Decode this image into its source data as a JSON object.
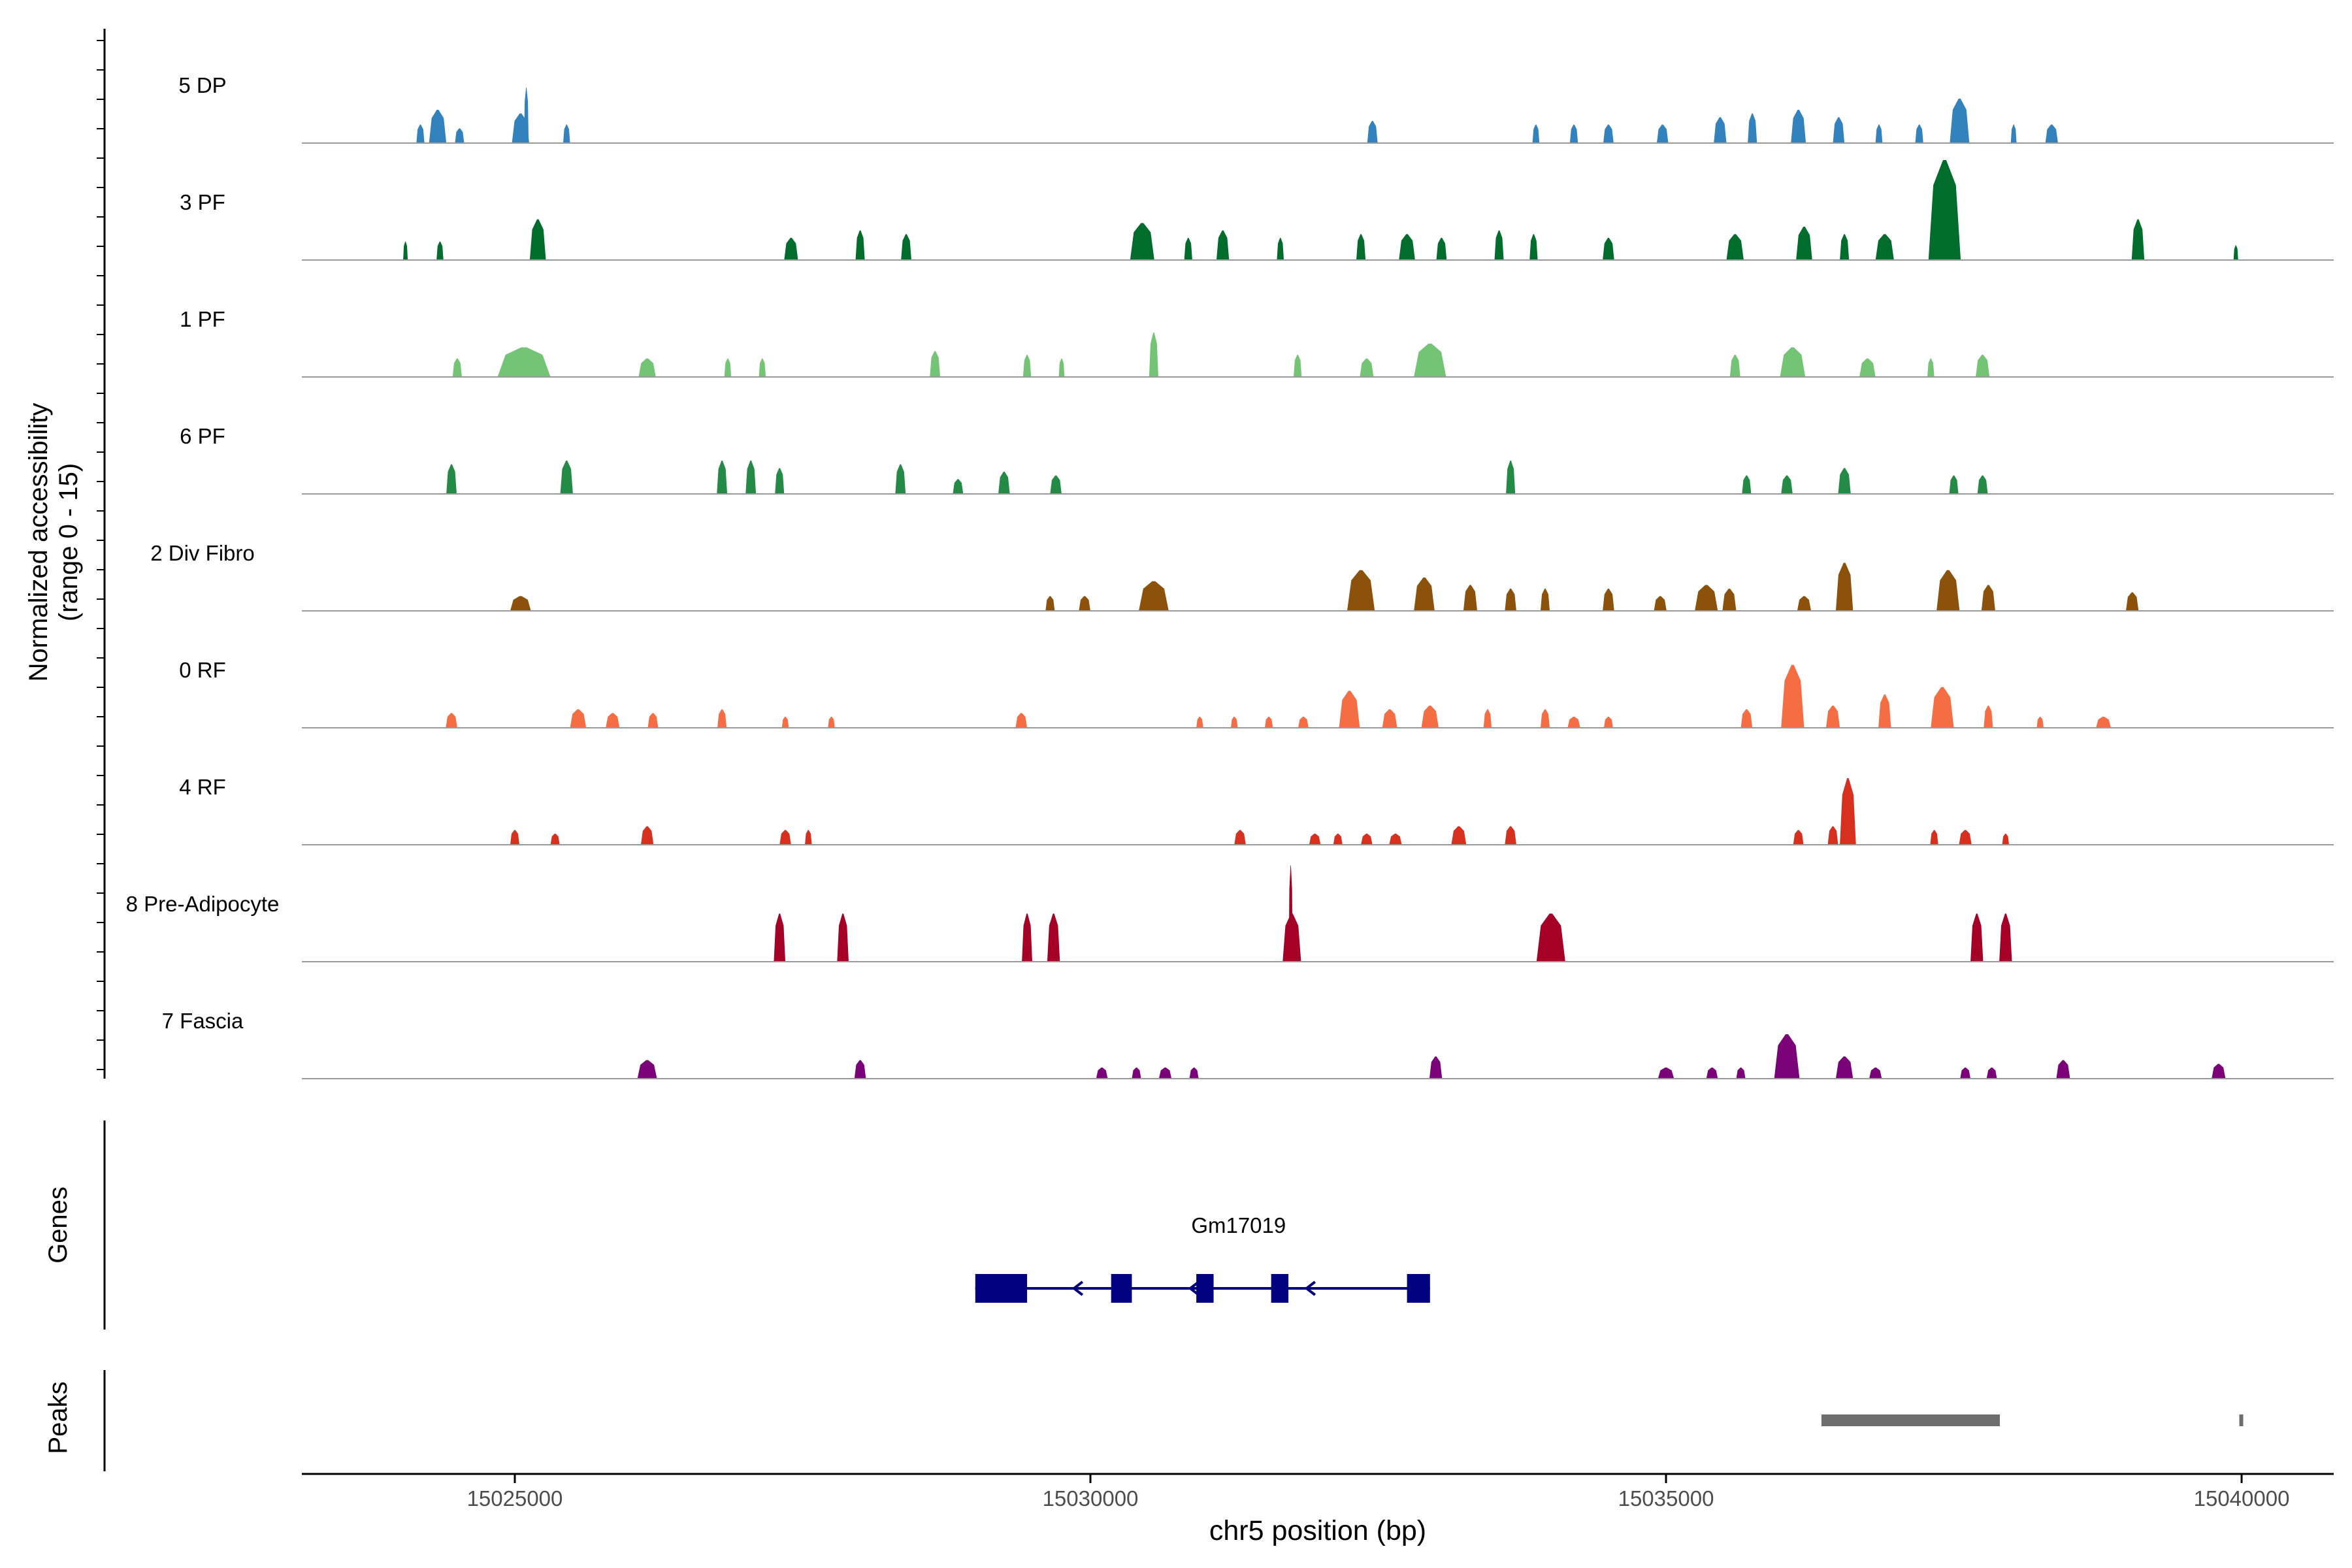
{
  "chart_data": {
    "type": "area",
    "title": "",
    "xlabel": "chr5 position (bp)",
    "ylabel": "Normalized accessibility",
    "ylabel_range": "(range 0 - 15)",
    "xlim": [
      15023150,
      15040800
    ],
    "xticks": [
      15025000,
      15030000,
      15035000,
      15040000
    ],
    "xtick_labels": [
      "15025000",
      "15030000",
      "15035000",
      "15040000"
    ],
    "ylim": [
      0,
      15
    ],
    "grid": false,
    "series": [
      {
        "name": "5 DP",
        "color": "#3182BD",
        "peaks": [
          [
            15024330,
            150,
            4.5
          ],
          [
            15024180,
            70,
            2.5
          ],
          [
            15024520,
            80,
            2.0
          ],
          [
            15025050,
            150,
            4.0
          ],
          [
            15025100,
            40,
            7.5
          ],
          [
            15025450,
            60,
            2.5
          ],
          [
            15032450,
            90,
            3.0
          ],
          [
            15033870,
            60,
            2.5
          ],
          [
            15034200,
            70,
            2.5
          ],
          [
            15034500,
            90,
            2.5
          ],
          [
            15034970,
            100,
            2.5
          ],
          [
            15035470,
            110,
            3.5
          ],
          [
            15035750,
            80,
            4.0
          ],
          [
            15036150,
            130,
            4.5
          ],
          [
            15036500,
            100,
            3.5
          ],
          [
            15036850,
            60,
            2.5
          ],
          [
            15037200,
            70,
            2.5
          ],
          [
            15037550,
            170,
            6.0
          ],
          [
            15038020,
            50,
            2.5
          ],
          [
            15038350,
            110,
            2.5
          ]
        ]
      },
      {
        "name": "3 PF",
        "color": "#006D2C",
        "peaks": [
          [
            15024050,
            40,
            2.5
          ],
          [
            15024350,
            60,
            2.5
          ],
          [
            15025200,
            140,
            5.5
          ],
          [
            15027400,
            120,
            3.0
          ],
          [
            15028000,
            80,
            4.0
          ],
          [
            15028400,
            90,
            3.5
          ],
          [
            15030450,
            210,
            5.0
          ],
          [
            15030850,
            70,
            3.0
          ],
          [
            15031150,
            110,
            4.0
          ],
          [
            15031650,
            60,
            3.0
          ],
          [
            15032350,
            80,
            3.5
          ],
          [
            15032750,
            140,
            3.5
          ],
          [
            15033050,
            90,
            3.0
          ],
          [
            15033550,
            80,
            4.0
          ],
          [
            15033850,
            70,
            3.5
          ],
          [
            15034500,
            100,
            3.0
          ],
          [
            15035600,
            150,
            3.5
          ],
          [
            15036200,
            140,
            4.5
          ],
          [
            15036550,
            80,
            3.5
          ],
          [
            15036900,
            160,
            3.5
          ],
          [
            15037420,
            280,
            13.5
          ],
          [
            15039100,
            110,
            5.5
          ],
          [
            15039950,
            40,
            2.0
          ]
        ]
      },
      {
        "name": "1 PF",
        "color": "#74C476",
        "peaks": [
          [
            15025080,
            460,
            4.0
          ],
          [
            15024500,
            80,
            2.5
          ],
          [
            15026150,
            150,
            2.5
          ],
          [
            15026850,
            60,
            2.5
          ],
          [
            15027150,
            60,
            2.5
          ],
          [
            15028650,
            90,
            3.5
          ],
          [
            15029450,
            70,
            3.0
          ],
          [
            15029750,
            50,
            2.5
          ],
          [
            15030550,
            80,
            6.0
          ],
          [
            15031800,
            70,
            3.0
          ],
          [
            15032400,
            120,
            2.5
          ],
          [
            15032950,
            280,
            4.5
          ],
          [
            15035600,
            90,
            3.0
          ],
          [
            15036100,
            220,
            4.0
          ],
          [
            15036750,
            140,
            2.5
          ],
          [
            15037300,
            60,
            2.5
          ],
          [
            15037750,
            120,
            3.0
          ]
        ]
      },
      {
        "name": "6 PF",
        "color": "#238B45",
        "peaks": [
          [
            15024450,
            90,
            4.0
          ],
          [
            15025450,
            110,
            4.5
          ],
          [
            15026800,
            90,
            4.5
          ],
          [
            15027050,
            90,
            4.5
          ],
          [
            15027300,
            80,
            3.5
          ],
          [
            15028350,
            90,
            4.0
          ],
          [
            15028850,
            90,
            2.0
          ],
          [
            15029250,
            100,
            3.0
          ],
          [
            15029700,
            100,
            2.5
          ],
          [
            15033650,
            80,
            4.5
          ],
          [
            15035700,
            80,
            2.5
          ],
          [
            15036050,
            100,
            2.5
          ],
          [
            15036550,
            110,
            3.5
          ],
          [
            15037500,
            80,
            2.5
          ],
          [
            15037750,
            90,
            2.5
          ]
        ]
      },
      {
        "name": "2 Div Fibro",
        "color": "#8C510A",
        "peaks": [
          [
            15025050,
            180,
            2.0
          ],
          [
            15029650,
            80,
            2.0
          ],
          [
            15029950,
            100,
            2.0
          ],
          [
            15030550,
            260,
            4.0
          ],
          [
            15032350,
            240,
            5.5
          ],
          [
            15032900,
            180,
            4.5
          ],
          [
            15033300,
            120,
            3.5
          ],
          [
            15033650,
            100,
            3.0
          ],
          [
            15033950,
            80,
            3.0
          ],
          [
            15034500,
            100,
            3.0
          ],
          [
            15034950,
            110,
            2.0
          ],
          [
            15035350,
            200,
            3.5
          ],
          [
            15035550,
            120,
            3.0
          ],
          [
            15036200,
            120,
            2.0
          ],
          [
            15036550,
            150,
            6.5
          ],
          [
            15037450,
            200,
            5.5
          ],
          [
            15037800,
            120,
            3.5
          ],
          [
            15039050,
            110,
            2.5
          ]
        ]
      },
      {
        "name": "0 RF",
        "color": "#F46D43",
        "peaks": [
          [
            15024450,
            100,
            2.0
          ],
          [
            15025550,
            140,
            2.5
          ],
          [
            15025850,
            120,
            2.0
          ],
          [
            15026200,
            90,
            2.0
          ],
          [
            15026800,
            80,
            2.5
          ],
          [
            15027350,
            60,
            1.5
          ],
          [
            15027750,
            60,
            1.5
          ],
          [
            15029400,
            100,
            2.0
          ],
          [
            15030950,
            60,
            1.5
          ],
          [
            15031250,
            60,
            1.5
          ],
          [
            15031550,
            70,
            1.5
          ],
          [
            15031850,
            90,
            1.5
          ],
          [
            15032250,
            180,
            5.0
          ],
          [
            15032600,
            130,
            2.5
          ],
          [
            15032950,
            150,
            3.0
          ],
          [
            15033450,
            70,
            2.5
          ],
          [
            15033950,
            80,
            2.5
          ],
          [
            15034200,
            110,
            1.5
          ],
          [
            15034500,
            80,
            1.5
          ],
          [
            15035700,
            100,
            2.5
          ],
          [
            15036100,
            200,
            8.5
          ],
          [
            15036450,
            120,
            3.0
          ],
          [
            15036900,
            110,
            4.5
          ],
          [
            15037400,
            200,
            5.5
          ],
          [
            15037800,
            80,
            3.0
          ],
          [
            15038250,
            60,
            1.5
          ],
          [
            15038800,
            130,
            1.5
          ]
        ]
      },
      {
        "name": "4 RF",
        "color": "#D7301F",
        "peaks": [
          [
            15025000,
            80,
            2.0
          ],
          [
            15025350,
            80,
            1.5
          ],
          [
            15026150,
            110,
            2.5
          ],
          [
            15027350,
            100,
            2.0
          ],
          [
            15027550,
            60,
            2.0
          ],
          [
            15031300,
            100,
            2.0
          ],
          [
            15031950,
            100,
            1.5
          ],
          [
            15032150,
            80,
            1.5
          ],
          [
            15032400,
            100,
            1.5
          ],
          [
            15032650,
            110,
            1.5
          ],
          [
            15033200,
            130,
            2.5
          ],
          [
            15033650,
            100,
            2.5
          ],
          [
            15036150,
            90,
            2.0
          ],
          [
            15036450,
            90,
            2.5
          ],
          [
            15036580,
            140,
            9.0
          ],
          [
            15037330,
            70,
            2.0
          ],
          [
            15037600,
            110,
            2.0
          ],
          [
            15037950,
            60,
            1.5
          ]
        ]
      },
      {
        "name": "8 Pre-Adipocyte",
        "color": "#A50026",
        "peaks": [
          [
            15027300,
            100,
            6.5
          ],
          [
            15027850,
            100,
            6.5
          ],
          [
            15029450,
            90,
            6.5
          ],
          [
            15029680,
            110,
            6.5
          ],
          [
            15031750,
            160,
            6.5
          ],
          [
            15031740,
            30,
            13.0
          ],
          [
            15034000,
            250,
            6.5
          ],
          [
            15037700,
            110,
            6.5
          ],
          [
            15037950,
            110,
            6.5
          ]
        ]
      },
      {
        "name": "7 Fascia",
        "color": "#7A0177",
        "peaks": [
          [
            15026150,
            170,
            2.5
          ],
          [
            15028000,
            100,
            2.5
          ],
          [
            15030100,
            100,
            1.5
          ],
          [
            15030400,
            80,
            1.5
          ],
          [
            15030650,
            110,
            1.5
          ],
          [
            15030900,
            80,
            1.5
          ],
          [
            15033000,
            110,
            3.0
          ],
          [
            15035000,
            140,
            1.5
          ],
          [
            15035400,
            100,
            1.5
          ],
          [
            15035650,
            80,
            1.5
          ],
          [
            15036050,
            220,
            6.0
          ],
          [
            15036550,
            150,
            3.0
          ],
          [
            15036820,
            110,
            1.5
          ],
          [
            15037600,
            90,
            1.5
          ],
          [
            15037830,
            90,
            1.5
          ],
          [
            15038450,
            120,
            2.5
          ],
          [
            15039800,
            120,
            2.0
          ]
        ]
      }
    ],
    "genes_label": "Genes",
    "genes": [
      {
        "name": "Gm17019",
        "strand": "-",
        "start": 15029000,
        "end": 15032950,
        "color": "#000080",
        "exons": [
          [
            15029000,
            15029450
          ],
          [
            15030180,
            15030360
          ],
          [
            15030920,
            15031070
          ],
          [
            15031570,
            15031720
          ],
          [
            15032750,
            15032950
          ]
        ],
        "arrows": [
          15029880,
          15030890,
          15031900
        ]
      }
    ],
    "peaks_label": "Peaks",
    "peak_regions": [
      [
        15036350,
        15037900
      ],
      [
        15039980,
        15040010
      ]
    ],
    "peak_color": "#6E6E6E"
  }
}
